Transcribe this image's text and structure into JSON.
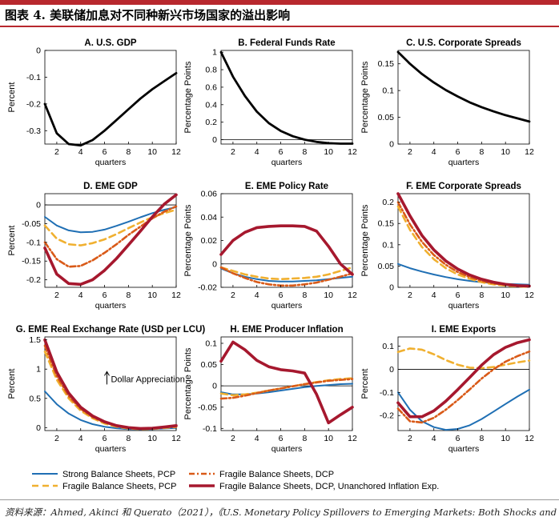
{
  "header": {
    "title": "图表 4. 美联储加息对不同种新兴市场国家的溢出影响"
  },
  "source": {
    "text": "资料来源：Ahmed, Akinci 和 Querato（2021），《U.S. Monetary Policy Spillovers to Emerging Markets: Both Shocks and"
  },
  "colors": {
    "us": "#000000",
    "strong_pcp": "#1f6fb4",
    "fragile_pcp": "#f0b030",
    "fragile_dcp": "#d95a18",
    "fragile_dcp_unanchored": "#a6182e"
  },
  "legend": [
    {
      "key": "strong_pcp",
      "label": "Strong Balance Sheets, PCP",
      "style": "solid"
    },
    {
      "key": "fragile_dcp",
      "label": "Fragile Balance Sheets, DCP",
      "style": "dashdot"
    },
    {
      "key": "fragile_pcp",
      "label": "Fragile Balance Sheets, PCP",
      "style": "dash"
    },
    {
      "key": "fragile_dcp_unanchored",
      "label": "Fragile Balance Sheets, DCP, Unanchored Inflation Exp.",
      "style": "solid-thick"
    }
  ],
  "chart_data": [
    {
      "id": "A",
      "type": "line",
      "title": "A. U.S. GDP",
      "ylabel": "Percent",
      "xlabel": "quarters",
      "x": [
        1,
        2,
        3,
        4,
        5,
        6,
        7,
        8,
        9,
        10,
        11,
        12
      ],
      "xlim": [
        1,
        12
      ],
      "xticks": [
        2,
        4,
        6,
        8,
        10,
        12
      ],
      "ylim": [
        -0.35,
        0
      ],
      "yticks": [
        0,
        -0.1,
        -0.2,
        -0.3
      ],
      "ytick_labels": [
        "0",
        "-0.1",
        "-0.2",
        "-0.3"
      ],
      "zero_line": false,
      "series": [
        {
          "key": "us",
          "values": [
            -0.2,
            -0.31,
            -0.35,
            -0.355,
            -0.335,
            -0.3,
            -0.26,
            -0.22,
            -0.18,
            -0.145,
            -0.115,
            -0.085
          ]
        }
      ]
    },
    {
      "id": "B",
      "type": "line",
      "title": "B. Federal Funds Rate",
      "ylabel": "Percentage Points",
      "xlabel": "quarters",
      "x": [
        1,
        2,
        3,
        4,
        5,
        6,
        7,
        8,
        9,
        10,
        11,
        12
      ],
      "xlim": [
        1,
        12
      ],
      "xticks": [
        2,
        4,
        6,
        8,
        10,
        12
      ],
      "ylim": [
        -0.05,
        1.02
      ],
      "yticks": [
        0,
        0.2,
        0.4,
        0.6,
        0.8,
        1
      ],
      "ytick_labels": [
        "0",
        "0.2",
        "0.4",
        "0.6",
        "0.8",
        "1"
      ],
      "zero_line": true,
      "series": [
        {
          "key": "us",
          "values": [
            1.0,
            0.72,
            0.5,
            0.32,
            0.19,
            0.1,
            0.04,
            0.0,
            -0.025,
            -0.04,
            -0.045,
            -0.045
          ]
        }
      ]
    },
    {
      "id": "C",
      "type": "line",
      "title": "C. U.S. Corporate Spreads",
      "ylabel": "Percentage Points",
      "xlabel": "quarters",
      "x": [
        1,
        2,
        3,
        4,
        5,
        6,
        7,
        8,
        9,
        10,
        11,
        12
      ],
      "xlim": [
        1,
        12
      ],
      "xticks": [
        2,
        4,
        6,
        8,
        10,
        12
      ],
      "ylim": [
        0,
        0.175
      ],
      "yticks": [
        0,
        0.05,
        0.1,
        0.15
      ],
      "ytick_labels": [
        "0",
        "0.05",
        "0.1",
        "0.15"
      ],
      "zero_line": false,
      "series": [
        {
          "key": "us",
          "values": [
            0.172,
            0.15,
            0.131,
            0.115,
            0.101,
            0.089,
            0.078,
            0.069,
            0.061,
            0.054,
            0.048,
            0.042
          ]
        }
      ]
    },
    {
      "id": "D",
      "type": "line",
      "title": "D. EME GDP",
      "ylabel": "Percent",
      "xlabel": "quarters",
      "x": [
        1,
        2,
        3,
        4,
        5,
        6,
        7,
        8,
        9,
        10,
        11,
        12
      ],
      "xlim": [
        1,
        12
      ],
      "xticks": [
        2,
        4,
        6,
        8,
        10,
        12
      ],
      "ylim": [
        -0.22,
        0.03
      ],
      "yticks": [
        0,
        -0.05,
        -0.1,
        -0.15,
        -0.2
      ],
      "ytick_labels": [
        "0",
        "-0.05",
        "-0.1",
        "-0.15",
        "-0.2"
      ],
      "zero_line": true,
      "series": [
        {
          "key": "strong_pcp",
          "values": [
            -0.032,
            -0.055,
            -0.068,
            -0.073,
            -0.072,
            -0.066,
            -0.056,
            -0.045,
            -0.033,
            -0.022,
            -0.013,
            -0.006
          ]
        },
        {
          "key": "fragile_pcp",
          "values": [
            -0.055,
            -0.09,
            -0.105,
            -0.108,
            -0.102,
            -0.092,
            -0.078,
            -0.062,
            -0.047,
            -0.033,
            -0.022,
            -0.013
          ]
        },
        {
          "key": "fragile_dcp",
          "values": [
            -0.1,
            -0.145,
            -0.165,
            -0.163,
            -0.148,
            -0.128,
            -0.105,
            -0.08,
            -0.058,
            -0.036,
            -0.018,
            -0.004
          ]
        },
        {
          "key": "fragile_dcp_unanchored",
          "values": [
            -0.115,
            -0.185,
            -0.21,
            -0.212,
            -0.2,
            -0.175,
            -0.143,
            -0.107,
            -0.07,
            -0.032,
            0.002,
            0.027
          ]
        }
      ]
    },
    {
      "id": "E",
      "type": "line",
      "title": "E. EME Policy Rate",
      "ylabel": "Percentage Points",
      "xlabel": "quarters",
      "x": [
        1,
        2,
        3,
        4,
        5,
        6,
        7,
        8,
        9,
        10,
        11,
        12
      ],
      "xlim": [
        1,
        12
      ],
      "xticks": [
        2,
        4,
        6,
        8,
        10,
        12
      ],
      "ylim": [
        -0.02,
        0.06
      ],
      "yticks": [
        -0.02,
        0,
        0.02,
        0.04,
        0.06
      ],
      "ytick_labels": [
        "-0.02",
        "0",
        "0.02",
        "0.04",
        "0.06"
      ],
      "zero_line": true,
      "series": [
        {
          "key": "strong_pcp",
          "values": [
            -0.004,
            -0.008,
            -0.011,
            -0.013,
            -0.0145,
            -0.015,
            -0.015,
            -0.0145,
            -0.014,
            -0.013,
            -0.012,
            -0.011
          ]
        },
        {
          "key": "fragile_pcp",
          "values": [
            -0.003,
            -0.006,
            -0.009,
            -0.011,
            -0.0125,
            -0.013,
            -0.0125,
            -0.012,
            -0.011,
            -0.009,
            -0.006,
            -0.003
          ]
        },
        {
          "key": "fragile_dcp",
          "values": [
            -0.003,
            -0.008,
            -0.012,
            -0.0155,
            -0.0175,
            -0.0185,
            -0.0185,
            -0.0175,
            -0.016,
            -0.0135,
            -0.011,
            -0.008
          ]
        },
        {
          "key": "fragile_dcp_unanchored",
          "values": [
            0.008,
            0.02,
            0.027,
            0.031,
            0.032,
            0.0325,
            0.0325,
            0.032,
            0.028,
            0.015,
            0.0,
            -0.009
          ]
        }
      ]
    },
    {
      "id": "F",
      "type": "line",
      "title": "F. EME Corporate Spreads",
      "ylabel": "Percentage Points",
      "xlabel": "quarters",
      "x": [
        1,
        2,
        3,
        4,
        5,
        6,
        7,
        8,
        9,
        10,
        11,
        12
      ],
      "xlim": [
        1,
        12
      ],
      "xticks": [
        2,
        4,
        6,
        8,
        10,
        12
      ],
      "ylim": [
        0,
        0.22
      ],
      "yticks": [
        0,
        0.05,
        0.1,
        0.15,
        0.2
      ],
      "ytick_labels": [
        "0",
        "0.05",
        "0.1",
        "0.15",
        "0.2"
      ],
      "zero_line": false,
      "series": [
        {
          "key": "strong_pcp",
          "values": [
            0.055,
            0.045,
            0.037,
            0.03,
            0.024,
            0.019,
            0.015,
            0.012,
            0.01,
            0.008,
            0.007,
            0.006
          ]
        },
        {
          "key": "fragile_pcp",
          "values": [
            0.19,
            0.135,
            0.095,
            0.066,
            0.045,
            0.03,
            0.02,
            0.012,
            0.007,
            0.004,
            0.002,
            0.001
          ]
        },
        {
          "key": "fragile_dcp",
          "values": [
            0.2,
            0.148,
            0.107,
            0.076,
            0.053,
            0.036,
            0.024,
            0.015,
            0.009,
            0.006,
            0.004,
            0.002
          ]
        },
        {
          "key": "fragile_dcp_unanchored",
          "values": [
            0.22,
            0.168,
            0.122,
            0.088,
            0.062,
            0.043,
            0.029,
            0.019,
            0.012,
            0.007,
            0.004,
            0.003
          ]
        }
      ]
    },
    {
      "id": "G",
      "type": "line",
      "title": "G. EME Real Exchange Rate (USD per LCU)",
      "ylabel": "Percent",
      "xlabel": "quarters",
      "x": [
        1,
        2,
        3,
        4,
        5,
        6,
        7,
        8,
        9,
        10,
        11,
        12
      ],
      "xlim": [
        1,
        12
      ],
      "xticks": [
        2,
        4,
        6,
        8,
        10,
        12
      ],
      "ylim": [
        -0.05,
        1.55
      ],
      "yticks": [
        0,
        0.5,
        1,
        1.5
      ],
      "ytick_labels": [
        "0",
        "0.5",
        "1",
        "1.5"
      ],
      "zero_line": false,
      "annotation": {
        "text": "Dollar Appreciation",
        "x": 6.6,
        "y": 0.82
      },
      "series": [
        {
          "key": "strong_pcp",
          "values": [
            0.62,
            0.4,
            0.24,
            0.13,
            0.06,
            0.015,
            -0.01,
            -0.025,
            -0.03,
            -0.025,
            -0.015,
            -0.005
          ]
        },
        {
          "key": "fragile_pcp",
          "values": [
            1.3,
            0.82,
            0.5,
            0.29,
            0.16,
            0.07,
            0.015,
            -0.015,
            -0.025,
            -0.02,
            -0.005,
            0.01
          ]
        },
        {
          "key": "fragile_dcp",
          "values": [
            1.4,
            0.88,
            0.54,
            0.32,
            0.18,
            0.09,
            0.03,
            0.0,
            -0.015,
            -0.01,
            0.005,
            0.02
          ]
        },
        {
          "key": "fragile_dcp_unanchored",
          "values": [
            1.5,
            0.95,
            0.59,
            0.35,
            0.2,
            0.1,
            0.035,
            0.0,
            -0.015,
            -0.01,
            0.01,
            0.035
          ]
        }
      ]
    },
    {
      "id": "H",
      "type": "line",
      "title": "H. EME Producer Inflation",
      "ylabel": "Percentage Points",
      "xlabel": "quarters",
      "x": [
        1,
        2,
        3,
        4,
        5,
        6,
        7,
        8,
        9,
        10,
        11,
        12
      ],
      "xlim": [
        1,
        12
      ],
      "xticks": [
        2,
        4,
        6,
        8,
        10,
        12
      ],
      "ylim": [
        -0.105,
        0.115
      ],
      "yticks": [
        0.1,
        0.05,
        0,
        -0.05,
        -0.1
      ],
      "ytick_labels": [
        "0.1",
        "0.05",
        "0",
        "-0.05",
        "-0.1"
      ],
      "zero_line": true,
      "series": [
        {
          "key": "strong_pcp",
          "values": [
            -0.015,
            -0.02,
            -0.02,
            -0.018,
            -0.015,
            -0.011,
            -0.007,
            -0.003,
            0.0,
            0.002,
            0.004,
            0.005
          ]
        },
        {
          "key": "fragile_pcp",
          "values": [
            -0.018,
            -0.022,
            -0.02,
            -0.016,
            -0.011,
            -0.006,
            -0.001,
            0.004,
            0.009,
            0.013,
            0.016,
            0.018
          ]
        },
        {
          "key": "fragile_dcp",
          "values": [
            -0.03,
            -0.028,
            -0.023,
            -0.017,
            -0.011,
            -0.006,
            -0.001,
            0.004,
            0.008,
            0.012,
            0.014,
            0.016
          ]
        },
        {
          "key": "fragile_dcp_unanchored",
          "values": [
            0.058,
            0.103,
            0.085,
            0.06,
            0.045,
            0.038,
            0.035,
            0.03,
            -0.02,
            -0.087,
            -0.068,
            -0.05
          ]
        }
      ]
    },
    {
      "id": "I",
      "type": "line",
      "title": "I. EME Exports",
      "ylabel": "Percent",
      "xlabel": "quarters",
      "x": [
        1,
        2,
        3,
        4,
        5,
        6,
        7,
        8,
        9,
        10,
        11,
        12
      ],
      "xlim": [
        1,
        12
      ],
      "xticks": [
        2,
        4,
        6,
        8,
        10,
        12
      ],
      "ylim": [
        -0.265,
        0.14
      ],
      "yticks": [
        0.1,
        0,
        -0.1,
        -0.2
      ],
      "ytick_labels": [
        "0.1",
        "0",
        "-0.1",
        "-0.2"
      ],
      "zero_line": true,
      "series": [
        {
          "key": "strong_pcp",
          "values": [
            -0.1,
            -0.175,
            -0.225,
            -0.25,
            -0.262,
            -0.258,
            -0.242,
            -0.215,
            -0.183,
            -0.15,
            -0.118,
            -0.088
          ]
        },
        {
          "key": "fragile_pcp",
          "values": [
            0.075,
            0.09,
            0.085,
            0.065,
            0.04,
            0.02,
            0.007,
            0.005,
            0.01,
            0.02,
            0.03,
            0.038
          ]
        },
        {
          "key": "fragile_dcp",
          "values": [
            -0.17,
            -0.225,
            -0.23,
            -0.21,
            -0.175,
            -0.133,
            -0.087,
            -0.04,
            0.0,
            0.033,
            0.057,
            0.077
          ]
        },
        {
          "key": "fragile_dcp_unanchored",
          "values": [
            -0.145,
            -0.205,
            -0.205,
            -0.18,
            -0.138,
            -0.088,
            -0.035,
            0.018,
            0.063,
            0.095,
            0.115,
            0.128
          ]
        }
      ]
    }
  ]
}
